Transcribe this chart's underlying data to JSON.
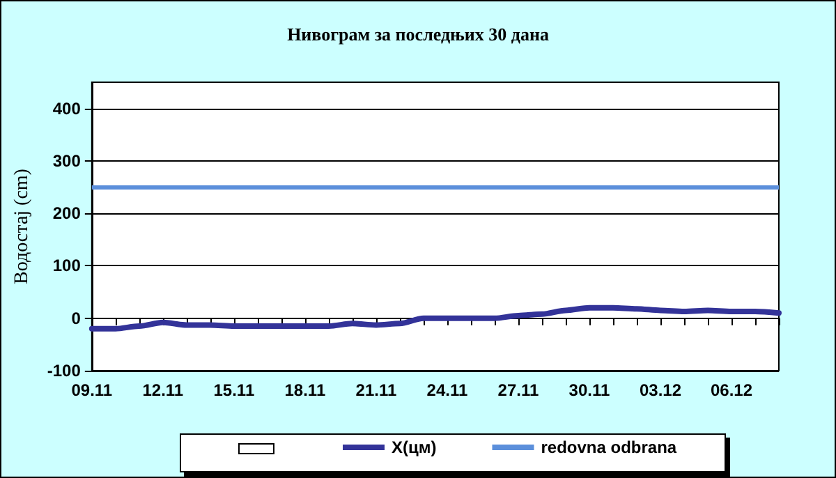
{
  "chart_data": {
    "type": "line",
    "title": "Нивограм за последњих 30 дана",
    "ylabel": "Водостај (cm)",
    "categories": [
      "09.11",
      null,
      null,
      "12.11",
      null,
      null,
      "15.11",
      null,
      null,
      "18.11",
      null,
      null,
      "21.11",
      null,
      null,
      "24.11",
      null,
      null,
      "27.11",
      null,
      null,
      "30.11",
      null,
      null,
      "03.12",
      null,
      null,
      "06.12",
      null,
      null
    ],
    "series": [
      {
        "name": "X(цм)",
        "color": "#333399",
        "values": [
          -20,
          -20,
          -15,
          -8,
          -13,
          -13,
          -15,
          -15,
          -15,
          -15,
          -15,
          -10,
          -13,
          -10,
          0,
          0,
          0,
          0,
          5,
          8,
          15,
          20,
          20,
          18,
          15,
          13,
          15,
          13,
          13,
          10
        ]
      }
    ],
    "ref_lines": [
      {
        "axis": "y",
        "value": 250,
        "label": "redovna odbrana",
        "color": "#5b8fdb"
      }
    ],
    "ylim": [
      -100,
      450
    ],
    "yticks": [
      -100,
      0,
      100,
      200,
      300,
      400
    ],
    "grid": "y",
    "legend": "bottom",
    "marker": "none",
    "line_style": "solid"
  }
}
